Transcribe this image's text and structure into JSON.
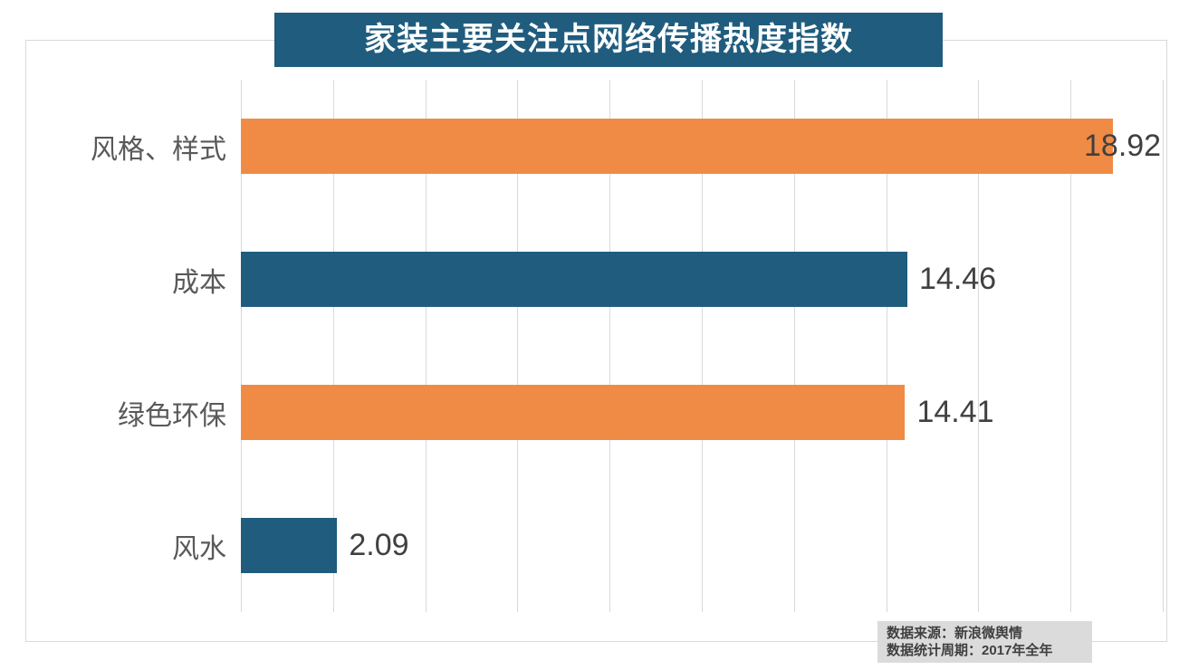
{
  "title": "家装主要关注点网络传播热度指数",
  "chart_data": {
    "type": "bar",
    "orientation": "horizontal",
    "title": "家装主要关注点网络传播热度指数",
    "categories": [
      "风格、样式",
      "成本",
      "绿色环保",
      "风水"
    ],
    "values": [
      18.92,
      14.46,
      14.41,
      2.09
    ],
    "value_labels": [
      "18.92",
      "14.46",
      "14.41",
      "2.09"
    ],
    "bar_colors": [
      "#F08B45",
      "#1F5C7E",
      "#F08B45",
      "#1F5C7E"
    ],
    "xlim": [
      0,
      20
    ],
    "gridline_interval": 2,
    "grid": true,
    "legend": false
  },
  "footnote": {
    "source": "数据来源：新浪微舆情",
    "period": "数据统计周期：2017年全年"
  },
  "colors": {
    "title_bg": "#1F5C7E",
    "title_text": "#FFFFFF",
    "bar_teal": "#1F5C7E",
    "bar_orange": "#F08B45",
    "gridline": "#D9D9D9",
    "frame_border": "#D9D9D9",
    "category_text": "#595959",
    "value_text": "#404040",
    "footnote_bg": "#DBDBDB",
    "footnote_text": "#3F3F3F"
  }
}
